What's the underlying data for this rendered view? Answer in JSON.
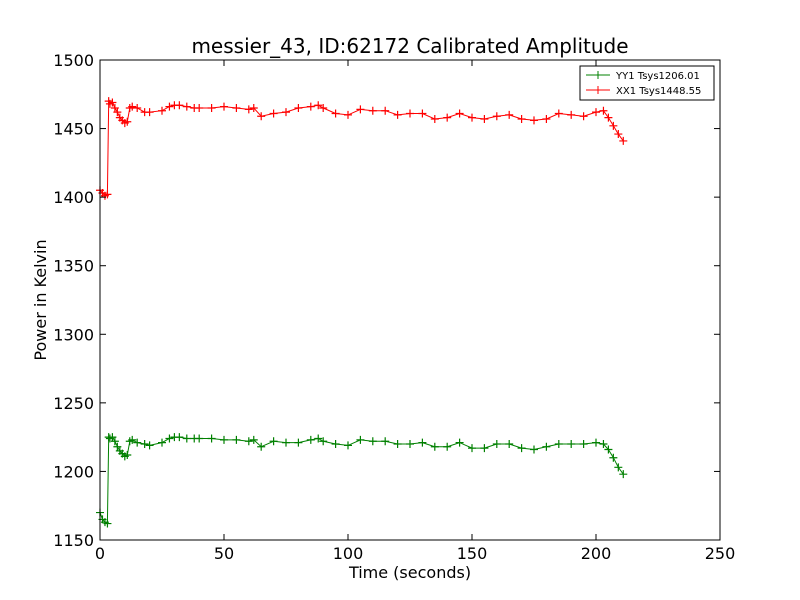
{
  "chart_data": {
    "type": "line",
    "title": "messier_43, ID:62172 Calibrated Amplitude",
    "xlabel": "Time (seconds)",
    "ylabel": "Power in Kelvin",
    "xlim": [
      0,
      250
    ],
    "ylim": [
      1150,
      1500
    ],
    "xticks": [
      "0",
      "50",
      "100",
      "150",
      "200",
      "250"
    ],
    "yticks": [
      "1150",
      "1200",
      "1250",
      "1300",
      "1350",
      "1400",
      "1450",
      "1500"
    ],
    "grid": false,
    "legend_position": "top-right",
    "marker": "plus",
    "series": [
      {
        "name": "YY1 Tsys1206.01",
        "color": "#008000",
        "x": [
          0,
          1,
          2,
          3,
          3.5,
          4,
          5,
          6,
          7,
          8,
          9,
          10,
          11,
          12,
          13,
          15,
          18,
          20,
          25,
          28,
          30,
          32,
          35,
          38,
          40,
          45,
          50,
          55,
          60,
          62,
          65,
          70,
          75,
          80,
          85,
          88,
          90,
          95,
          100,
          105,
          110,
          115,
          120,
          125,
          130,
          135,
          140,
          145,
          150,
          155,
          160,
          165,
          170,
          175,
          180,
          185,
          190,
          195,
          200,
          203,
          205,
          207,
          209,
          211
        ],
        "y": [
          1170,
          1165,
          1163,
          1162,
          1225,
          1224,
          1225,
          1222,
          1218,
          1215,
          1213,
          1211,
          1212,
          1222,
          1223,
          1221,
          1220,
          1219,
          1221,
          1224,
          1225,
          1225,
          1224,
          1224,
          1224,
          1224,
          1223,
          1223,
          1222,
          1223,
          1218,
          1222,
          1221,
          1221,
          1223,
          1224,
          1222,
          1220,
          1219,
          1223,
          1222,
          1222,
          1220,
          1220,
          1221,
          1218,
          1218,
          1221,
          1217,
          1217,
          1220,
          1220,
          1217,
          1216,
          1218,
          1220,
          1220,
          1220,
          1221,
          1220,
          1216,
          1210,
          1203,
          1198
        ]
      },
      {
        "name": "XX1 Tsys1448.55",
        "color": "#ff0000",
        "x": [
          0,
          1,
          2,
          3,
          3.5,
          4,
          5,
          6,
          7,
          8,
          9,
          10,
          11,
          12,
          13,
          15,
          18,
          20,
          25,
          28,
          30,
          32,
          35,
          38,
          40,
          45,
          50,
          55,
          60,
          62,
          65,
          70,
          75,
          80,
          85,
          88,
          90,
          95,
          100,
          105,
          110,
          115,
          120,
          125,
          130,
          135,
          140,
          145,
          150,
          155,
          160,
          165,
          170,
          175,
          180,
          185,
          190,
          195,
          200,
          203,
          205,
          207,
          209,
          211
        ],
        "y": [
          1405,
          1403,
          1401,
          1402,
          1470,
          1468,
          1469,
          1465,
          1462,
          1458,
          1456,
          1454,
          1455,
          1465,
          1466,
          1465,
          1462,
          1462,
          1463,
          1466,
          1467,
          1467,
          1466,
          1465,
          1465,
          1465,
          1466,
          1465,
          1464,
          1465,
          1459,
          1461,
          1462,
          1465,
          1466,
          1467,
          1465,
          1461,
          1460,
          1464,
          1463,
          1463,
          1460,
          1461,
          1461,
          1457,
          1458,
          1461,
          1458,
          1457,
          1459,
          1460,
          1457,
          1456,
          1457,
          1461,
          1460,
          1459,
          1462,
          1463,
          1458,
          1452,
          1446,
          1441
        ]
      }
    ]
  }
}
